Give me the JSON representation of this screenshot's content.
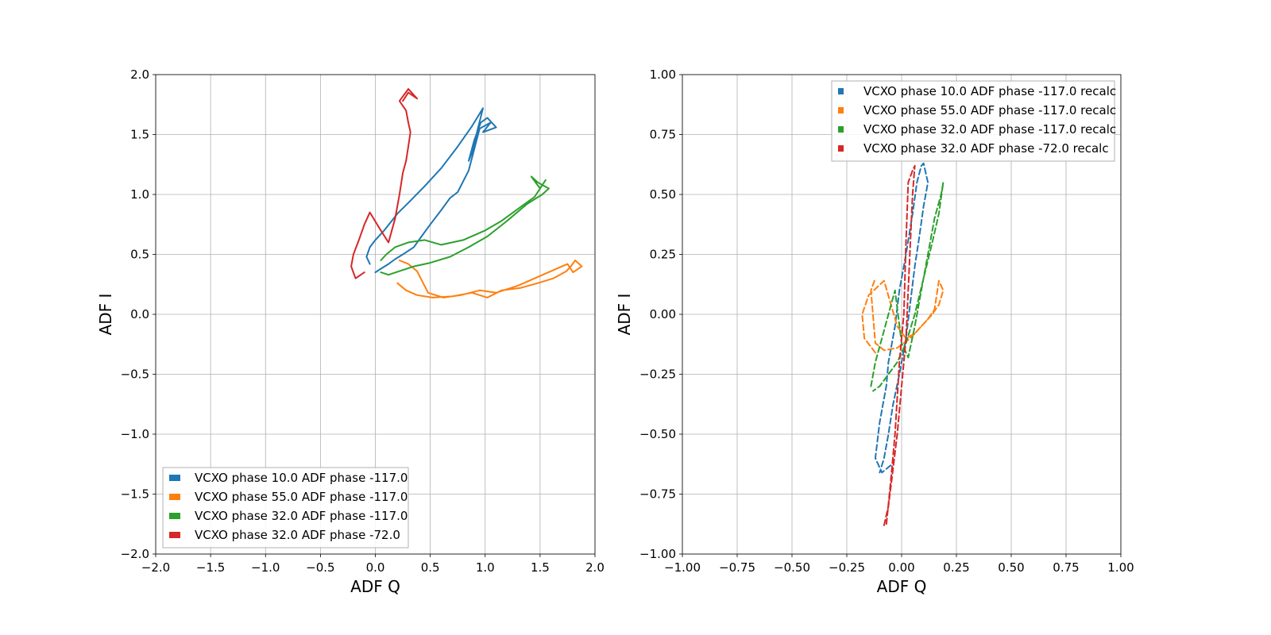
{
  "chart_data": [
    {
      "type": "line",
      "xlabel": "ADF Q",
      "ylabel": "ADF I",
      "xlim": [
        -2.0,
        2.0
      ],
      "ylim": [
        -2.0,
        2.0
      ],
      "xticks": [
        -2.0,
        -1.5,
        -1.0,
        -0.5,
        0.0,
        0.5,
        1.0,
        1.5,
        2.0
      ],
      "xtick_labels": [
        "−2.0",
        "−1.5",
        "−1.0",
        "−0.5",
        "0.0",
        "0.5",
        "1.0",
        "1.5",
        "2.0"
      ],
      "yticks": [
        -2.0,
        -1.5,
        -1.0,
        -0.5,
        0.0,
        0.5,
        1.0,
        1.5,
        2.0
      ],
      "ytick_labels": [
        "−2.0",
        "−1.5",
        "−1.0",
        "−0.5",
        "0.0",
        "0.5",
        "1.0",
        "1.5",
        "2.0"
      ],
      "grid": true,
      "legend_position": "lower-left",
      "series": [
        {
          "name": "VCXO phase 10.0 ADF phase -117.0",
          "color": "#1f77b4",
          "style": "solid",
          "x": [
            -0.05,
            -0.08,
            -0.05,
            0.0,
            0.08,
            0.15,
            0.2,
            0.3,
            0.45,
            0.6,
            0.75,
            0.88,
            0.98,
            0.92,
            0.88,
            0.85,
            0.9,
            0.96,
            1.02,
            1.1,
            0.98,
            1.05,
            0.95,
            0.85,
            0.75,
            0.68,
            0.6,
            0.5,
            0.42,
            0.35,
            0.25,
            0.18,
            0.12,
            0.05,
            0.0
          ],
          "y": [
            0.42,
            0.48,
            0.56,
            0.62,
            0.7,
            0.78,
            0.84,
            0.93,
            1.07,
            1.22,
            1.4,
            1.57,
            1.72,
            1.5,
            1.35,
            1.28,
            1.45,
            1.6,
            1.64,
            1.56,
            1.52,
            1.6,
            1.55,
            1.2,
            1.02,
            0.97,
            0.87,
            0.75,
            0.65,
            0.56,
            0.5,
            0.46,
            0.42,
            0.38,
            0.35
          ]
        },
        {
          "name": "VCXO phase 55.0 ADF phase -117.0",
          "color": "#ff7f0e",
          "style": "solid",
          "x": [
            0.2,
            0.28,
            0.38,
            0.52,
            0.7,
            0.88,
            1.02,
            1.15,
            1.32,
            1.48,
            1.62,
            1.74,
            1.78,
            1.82,
            1.88,
            1.8,
            1.75,
            1.65,
            1.45,
            1.3,
            1.1,
            0.95,
            0.78,
            0.62,
            0.48,
            0.38,
            0.3,
            0.22
          ],
          "y": [
            0.26,
            0.2,
            0.16,
            0.14,
            0.15,
            0.18,
            0.14,
            0.2,
            0.22,
            0.26,
            0.3,
            0.36,
            0.4,
            0.45,
            0.4,
            0.35,
            0.42,
            0.38,
            0.3,
            0.24,
            0.18,
            0.2,
            0.16,
            0.14,
            0.18,
            0.36,
            0.42,
            0.45
          ]
        },
        {
          "name": "VCXO phase 32.0 ADF phase -117.0",
          "color": "#2ca02c",
          "style": "solid",
          "x": [
            0.05,
            0.12,
            0.22,
            0.35,
            0.5,
            0.68,
            0.85,
            1.02,
            1.2,
            1.38,
            1.52,
            1.58,
            1.48,
            1.42,
            1.5,
            1.55,
            1.45,
            1.3,
            1.15,
            1.0,
            0.8,
            0.6,
            0.45,
            0.3,
            0.18,
            0.1,
            0.05
          ],
          "y": [
            0.35,
            0.33,
            0.36,
            0.4,
            0.43,
            0.48,
            0.56,
            0.65,
            0.78,
            0.92,
            1.0,
            1.05,
            1.1,
            1.15,
            1.05,
            1.12,
            0.98,
            0.88,
            0.78,
            0.7,
            0.62,
            0.58,
            0.62,
            0.6,
            0.56,
            0.5,
            0.45
          ]
        },
        {
          "name": "VCXO phase 32.0 ADF phase -72.0",
          "color": "#d62728",
          "style": "solid",
          "x": [
            -0.1,
            -0.18,
            -0.22,
            -0.2,
            -0.15,
            -0.1,
            -0.05,
            0.05,
            0.12,
            0.18,
            0.22,
            0.25,
            0.28,
            0.3,
            0.32,
            0.3,
            0.28,
            0.22,
            0.3,
            0.38,
            0.3,
            0.25
          ],
          "y": [
            0.35,
            0.3,
            0.4,
            0.5,
            0.62,
            0.75,
            0.85,
            0.7,
            0.6,
            0.8,
            1.0,
            1.18,
            1.28,
            1.4,
            1.52,
            1.6,
            1.7,
            1.78,
            1.88,
            1.8,
            1.85,
            1.78
          ]
        }
      ]
    },
    {
      "type": "line",
      "xlabel": "ADF Q",
      "ylabel": "ADF I",
      "xlim": [
        -1.0,
        1.0
      ],
      "ylim": [
        -1.0,
        1.0
      ],
      "xticks": [
        -1.0,
        -0.75,
        -0.5,
        -0.25,
        0.0,
        0.25,
        0.5,
        0.75,
        1.0
      ],
      "xtick_labels": [
        "−1.00",
        "−0.75",
        "−0.50",
        "−0.25",
        "0.00",
        "0.25",
        "0.50",
        "0.75",
        "1.00"
      ],
      "yticks": [
        -1.0,
        -0.75,
        -0.5,
        -0.25,
        0.0,
        0.25,
        0.5,
        0.75,
        1.0
      ],
      "ytick_labels": [
        "−1.00",
        "−0.75",
        "−0.50",
        "−0.25",
        "0.00",
        "0.25",
        "0.50",
        "0.75",
        "1.00"
      ],
      "grid": true,
      "legend_position": "upper-right",
      "series": [
        {
          "name": "VCXO phase 10.0 ADF phase -117.0 recalc",
          "color": "#1f77b4",
          "style": "dashed",
          "x": [
            -0.05,
            -0.09,
            -0.12,
            -0.1,
            -0.07,
            -0.06,
            -0.03,
            -0.01,
            0.02,
            0.05,
            0.07,
            0.09,
            0.1,
            0.12,
            0.1,
            0.08,
            0.06,
            0.04,
            0.02,
            -0.01,
            -0.04,
            -0.06,
            -0.08,
            -0.1
          ],
          "y": [
            -0.63,
            -0.66,
            -0.6,
            -0.45,
            -0.3,
            -0.2,
            -0.05,
            0.1,
            0.25,
            0.42,
            0.55,
            0.62,
            0.63,
            0.55,
            0.45,
            0.32,
            0.2,
            0.05,
            -0.1,
            -0.25,
            -0.38,
            -0.5,
            -0.6,
            -0.66
          ]
        },
        {
          "name": "VCXO phase 55.0 ADF phase -117.0 recalc",
          "color": "#ff7f0e",
          "style": "dashed",
          "x": [
            -0.12,
            -0.17,
            -0.18,
            -0.15,
            -0.08,
            -0.02,
            0.02,
            0.06,
            0.1,
            0.14,
            0.17,
            0.19,
            0.17,
            0.15,
            0.12,
            0.08,
            0.04,
            -0.02,
            -0.08,
            -0.12,
            -0.14,
            -0.12
          ],
          "y": [
            -0.16,
            -0.1,
            0.0,
            0.08,
            0.14,
            -0.05,
            -0.1,
            -0.08,
            -0.04,
            0.0,
            0.04,
            0.1,
            0.14,
            0.02,
            -0.02,
            -0.06,
            -0.1,
            -0.14,
            -0.15,
            -0.12,
            0.1,
            0.15
          ]
        },
        {
          "name": "VCXO phase 32.0 ADF phase -117.0 recalc",
          "color": "#2ca02c",
          "style": "dashed",
          "x": [
            -0.14,
            -0.12,
            -0.09,
            -0.06,
            -0.03,
            0.0,
            0.03,
            0.06,
            0.09,
            0.12,
            0.15,
            0.18,
            0.19,
            0.17,
            0.14,
            0.1,
            0.06,
            0.02,
            -0.02,
            -0.06,
            -0.1,
            -0.13
          ],
          "y": [
            -0.3,
            -0.2,
            -0.1,
            0.0,
            0.1,
            -0.12,
            -0.18,
            -0.05,
            0.1,
            0.25,
            0.4,
            0.5,
            0.55,
            0.42,
            0.3,
            0.15,
            0.0,
            -0.12,
            -0.2,
            -0.25,
            -0.3,
            -0.32
          ]
        },
        {
          "name": "VCXO phase 32.0 ADF phase -72.0 recalc",
          "color": "#d62728",
          "style": "dashed",
          "x": [
            -0.08,
            -0.06,
            -0.04,
            -0.02,
            0.0,
            0.02,
            0.03,
            0.04,
            0.05,
            0.06,
            0.05,
            0.03,
            0.02,
            0.01,
            -0.01,
            -0.03,
            -0.05,
            -0.07
          ],
          "y": [
            -0.88,
            -0.8,
            -0.65,
            -0.5,
            -0.3,
            -0.1,
            0.1,
            0.3,
            0.5,
            0.62,
            0.6,
            0.55,
            0.3,
            0.0,
            -0.2,
            -0.5,
            -0.7,
            -0.88
          ]
        }
      ]
    }
  ]
}
